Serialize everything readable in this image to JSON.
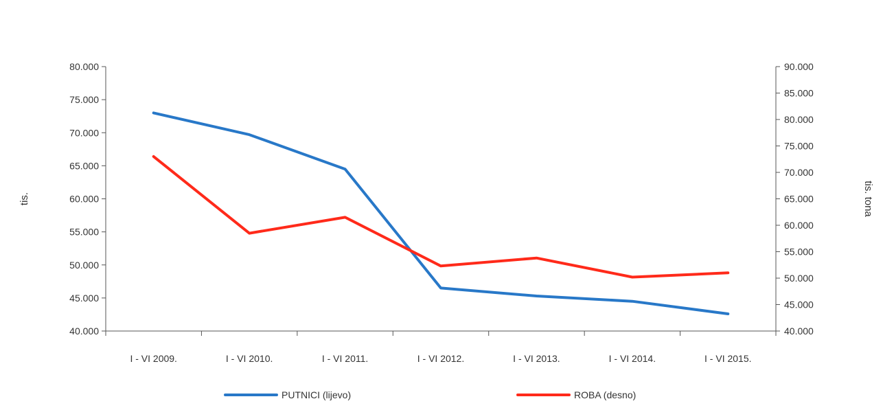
{
  "chart_data": {
    "type": "line",
    "categories": [
      "I - VI 2009.",
      "I - VI 2010.",
      "I - VI 2011.",
      "I - VI 2012.",
      "I - VI 2013.",
      "I - VI 2014.",
      "I - VI 2015."
    ],
    "left_axis": {
      "label": "tis.",
      "range": [
        40000,
        80000
      ],
      "ticks": [
        "40.000",
        "45.000",
        "50.000",
        "55.000",
        "60.000",
        "65.000",
        "70.000",
        "75.000",
        "80.000"
      ],
      "tick_values": [
        40000,
        45000,
        50000,
        55000,
        60000,
        65000,
        70000,
        75000,
        80000
      ]
    },
    "right_axis": {
      "label": "tis. tona",
      "range": [
        40000,
        90000
      ],
      "ticks": [
        "40.000",
        "45.000",
        "50.000",
        "55.000",
        "60.000",
        "65.000",
        "70.000",
        "75.000",
        "80.000",
        "85.000",
        "90.000"
      ],
      "tick_values": [
        40000,
        45000,
        50000,
        55000,
        60000,
        65000,
        70000,
        75000,
        80000,
        85000,
        90000
      ]
    },
    "series": [
      {
        "name": "PUTNICI (lijevo)",
        "axis": "left",
        "color": "#2878c8",
        "values": [
          73000,
          69700,
          64500,
          46500,
          45300,
          44500,
          42600
        ]
      },
      {
        "name": "ROBA (desno)",
        "axis": "right",
        "color": "#ff2a1a",
        "values": [
          73000,
          58500,
          61500,
          52300,
          53800,
          50200,
          51000
        ]
      }
    ],
    "grid": false,
    "legend_position": "bottom"
  }
}
